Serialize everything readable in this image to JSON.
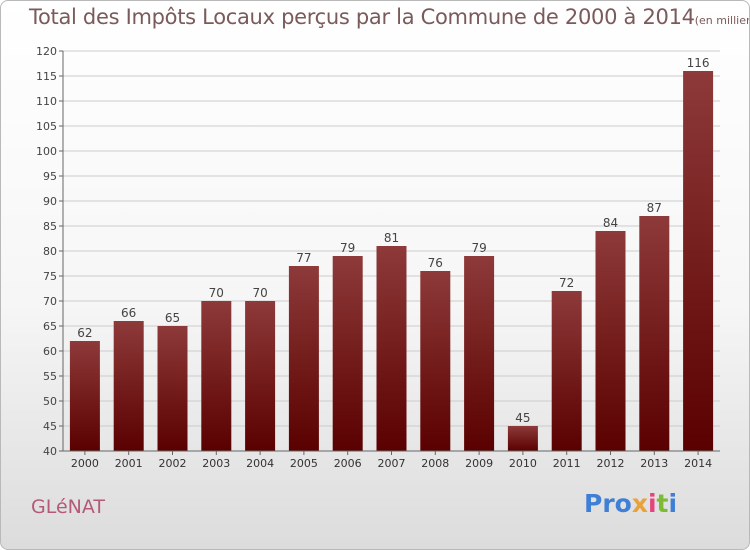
{
  "title": "Total des Impôts Locaux perçus par la Commune de 2000 à 2014",
  "subtitle": "(en milliers d'€)",
  "commune": "GLéNAT",
  "logo": {
    "text": "Proxiti",
    "parts": [
      "Pro",
      "x",
      "i",
      "t",
      "i"
    ]
  },
  "colors": {
    "bar_top": "#8e3a3a",
    "bar_bottom": "#5a0000",
    "title": "#7a5a5a",
    "commune": "#b45a78",
    "grid": "#cccccc"
  },
  "chart_data": {
    "type": "bar",
    "categories": [
      "2000",
      "2001",
      "2002",
      "2003",
      "2004",
      "2005",
      "2006",
      "2007",
      "2008",
      "2009",
      "2010",
      "2011",
      "2012",
      "2013",
      "2014"
    ],
    "values": [
      62,
      66,
      65,
      70,
      70,
      77,
      79,
      81,
      76,
      79,
      45,
      72,
      84,
      87,
      116
    ],
    "title": "Total des Impôts Locaux perçus par la Commune de 2000 à 2014",
    "subtitle": "(en milliers d'€)",
    "xlabel": "",
    "ylabel": "",
    "ylim": [
      40,
      120
    ],
    "yticks": [
      40,
      45,
      50,
      55,
      60,
      65,
      70,
      75,
      80,
      85,
      90,
      95,
      100,
      105,
      110,
      115,
      120
    ],
    "grid": true,
    "data_labels": true
  }
}
